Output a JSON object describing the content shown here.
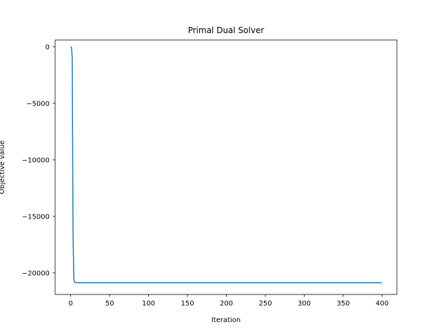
{
  "chart_data": {
    "type": "line",
    "title": "Primal Dual Solver",
    "xlabel": "Iteration",
    "ylabel": "Objective value",
    "xlim": [
      -20,
      419
    ],
    "ylim": [
      -21900,
      600
    ],
    "xticks": [
      0,
      50,
      100,
      150,
      200,
      250,
      300,
      350,
      400
    ],
    "xtick_labels": [
      "0",
      "50",
      "100",
      "150",
      "200",
      "250",
      "300",
      "350",
      "400"
    ],
    "yticks": [
      0,
      -5000,
      -10000,
      -15000,
      -20000
    ],
    "ytick_labels": [
      "0",
      "−5000",
      "−10000",
      "−15000",
      "−20000"
    ],
    "grid": false,
    "legend": "none",
    "series": [
      {
        "color": "#1f77b4",
        "x": [
          0,
          1,
          2,
          3,
          4,
          5,
          6,
          8,
          10,
          20,
          50,
          100,
          200,
          300,
          400
        ],
        "y": [
          0,
          -50,
          -1000,
          -16500,
          -20500,
          -20820,
          -20850,
          -20860,
          -20860,
          -20860,
          -20860,
          -20860,
          -20860,
          -20860,
          -20860
        ]
      }
    ]
  }
}
